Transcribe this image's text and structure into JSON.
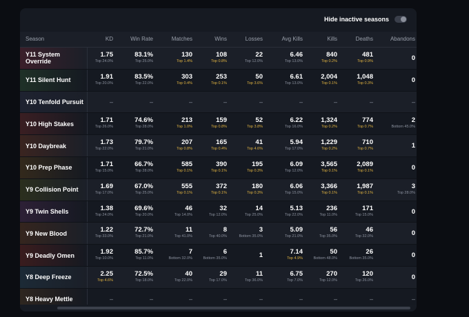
{
  "toggle": {
    "label": "Hide inactive seasons",
    "on": false
  },
  "columns": [
    "Season",
    "KD",
    "Win Rate",
    "Matches",
    "Wins",
    "Losses",
    "Avg Kills",
    "Kills",
    "Deaths",
    "Abandons"
  ],
  "rows": [
    {
      "season": "Y11 System Override",
      "tint": "#3b1f2a",
      "cells": [
        {
          "v": "1.75",
          "r": "Top 24.0%",
          "gold": false
        },
        {
          "v": "83.1%",
          "r": "Top 25.0%",
          "gold": false
        },
        {
          "v": "130",
          "r": "Top 1.4%",
          "gold": true
        },
        {
          "v": "108",
          "r": "Top 0.8%",
          "gold": true
        },
        {
          "v": "22",
          "r": "Top 12.0%",
          "gold": false
        },
        {
          "v": "6.46",
          "r": "Top 13.0%",
          "gold": false
        },
        {
          "v": "840",
          "r": "Top 0.2%",
          "gold": true
        },
        {
          "v": "481",
          "r": "Top 0.9%",
          "gold": true
        },
        {
          "v": "0",
          "r": "",
          "gold": false
        }
      ]
    },
    {
      "season": "Y11 Silent Hunt",
      "tint": "#1f3127",
      "cells": [
        {
          "v": "1.91",
          "r": "Top 20.0%",
          "gold": false
        },
        {
          "v": "83.5%",
          "r": "Top 22.0%",
          "gold": false
        },
        {
          "v": "303",
          "r": "Top 0.4%",
          "gold": true
        },
        {
          "v": "253",
          "r": "Top 0.1%",
          "gold": true
        },
        {
          "v": "50",
          "r": "Top 3.6%",
          "gold": true
        },
        {
          "v": "6.61",
          "r": "Top 13.0%",
          "gold": false
        },
        {
          "v": "2,004",
          "r": "Top 0.1%",
          "gold": true
        },
        {
          "v": "1,048",
          "r": "Top 0.3%",
          "gold": true
        },
        {
          "v": "0",
          "r": "",
          "gold": false
        }
      ]
    },
    {
      "season": "Y10 Tenfold Pursuit",
      "tint": "#1e2230",
      "cells": null
    },
    {
      "season": "Y10 High Stakes",
      "tint": "#3a1e22",
      "cells": [
        {
          "v": "1.71",
          "r": "Top 26.0%",
          "gold": false
        },
        {
          "v": "74.6%",
          "r": "Top 28.0%",
          "gold": false
        },
        {
          "v": "213",
          "r": "Top 1.0%",
          "gold": true
        },
        {
          "v": "159",
          "r": "Top 0.8%",
          "gold": true
        },
        {
          "v": "52",
          "r": "Top 3.8%",
          "gold": true
        },
        {
          "v": "6.22",
          "r": "Top 16.0%",
          "gold": false
        },
        {
          "v": "1,324",
          "r": "Top 0.2%",
          "gold": true
        },
        {
          "v": "774",
          "r": "Top 0.7%",
          "gold": true
        },
        {
          "v": "2",
          "r": "Bottom 45.0%",
          "gold": false
        }
      ]
    },
    {
      "season": "Y10 Daybreak",
      "tint": "#3a2420",
      "cells": [
        {
          "v": "1.73",
          "r": "Top 22.0%",
          "gold": false
        },
        {
          "v": "79.7%",
          "r": "Top 21.0%",
          "gold": false
        },
        {
          "v": "207",
          "r": "Top 0.8%",
          "gold": true
        },
        {
          "v": "165",
          "r": "Top 0.4%",
          "gold": true
        },
        {
          "v": "41",
          "r": "Top 4.6%",
          "gold": true
        },
        {
          "v": "5.94",
          "r": "Top 17.0%",
          "gold": false
        },
        {
          "v": "1,229",
          "r": "Top 0.2%",
          "gold": true
        },
        {
          "v": "710",
          "r": "Top 0.7%",
          "gold": true
        },
        {
          "v": "1",
          "r": "",
          "gold": false
        }
      ]
    },
    {
      "season": "Y10 Prep Phase",
      "tint": "#33291c",
      "cells": [
        {
          "v": "1.71",
          "r": "Top 15.0%",
          "gold": false
        },
        {
          "v": "66.7%",
          "r": "Top 28.0%",
          "gold": false
        },
        {
          "v": "585",
          "r": "Top 0.1%",
          "gold": true
        },
        {
          "v": "390",
          "r": "Top 0.1%",
          "gold": true
        },
        {
          "v": "195",
          "r": "Top 0.3%",
          "gold": true
        },
        {
          "v": "6.09",
          "r": "Top 12.0%",
          "gold": false
        },
        {
          "v": "3,565",
          "r": "Top 0.1%",
          "gold": true
        },
        {
          "v": "2,089",
          "r": "Top 0.1%",
          "gold": true
        },
        {
          "v": "0",
          "r": "",
          "gold": false
        }
      ]
    },
    {
      "season": "Y9 Collision Point",
      "tint": "#2b2f1e",
      "cells": [
        {
          "v": "1.69",
          "r": "Top 17.0%",
          "gold": false
        },
        {
          "v": "67.0%",
          "r": "Top 25.0%",
          "gold": false
        },
        {
          "v": "555",
          "r": "Top 0.1%",
          "gold": true
        },
        {
          "v": "372",
          "r": "Top 0.1%",
          "gold": true
        },
        {
          "v": "180",
          "r": "Top 0.3%",
          "gold": true
        },
        {
          "v": "6.06",
          "r": "Top 15.0%",
          "gold": false
        },
        {
          "v": "3,366",
          "r": "Top 0.1%",
          "gold": true
        },
        {
          "v": "1,987",
          "r": "Top 0.1%",
          "gold": true
        },
        {
          "v": "3",
          "r": "Top 28.0%",
          "gold": false
        }
      ]
    },
    {
      "season": "Y9 Twin Shells",
      "tint": "#2d2036",
      "cells": [
        {
          "v": "1.38",
          "r": "Top 24.0%",
          "gold": false
        },
        {
          "v": "69.6%",
          "r": "Top 20.0%",
          "gold": false
        },
        {
          "v": "46",
          "r": "Top 14.0%",
          "gold": false
        },
        {
          "v": "32",
          "r": "Top 12.0%",
          "gold": false
        },
        {
          "v": "14",
          "r": "Top 25.0%",
          "gold": false
        },
        {
          "v": "5.13",
          "r": "Top 22.0%",
          "gold": false
        },
        {
          "v": "236",
          "r": "Top 11.0%",
          "gold": false
        },
        {
          "v": "171",
          "r": "Top 15.0%",
          "gold": false
        },
        {
          "v": "0",
          "r": "",
          "gold": false
        }
      ]
    },
    {
      "season": "Y9 New Blood",
      "tint": "#35251e",
      "cells": [
        {
          "v": "1.22",
          "r": "Top 33.0%",
          "gold": false
        },
        {
          "v": "72.7%",
          "r": "Top 21.0%",
          "gold": false
        },
        {
          "v": "11",
          "r": "Top 41.0%",
          "gold": false
        },
        {
          "v": "8",
          "r": "Top 40.0%",
          "gold": false
        },
        {
          "v": "3",
          "r": "Bottom 35.0%",
          "gold": false
        },
        {
          "v": "5.09",
          "r": "Top 21.0%",
          "gold": false
        },
        {
          "v": "56",
          "r": "Top 35.0%",
          "gold": false
        },
        {
          "v": "46",
          "r": "Top 32.0%",
          "gold": false
        },
        {
          "v": "0",
          "r": "",
          "gold": false
        }
      ]
    },
    {
      "season": "Y9 Deadly Omen",
      "tint": "#3a1c1e",
      "cells": [
        {
          "v": "1.92",
          "r": "Top 10.0%",
          "gold": false
        },
        {
          "v": "85.7%",
          "r": "Top 11.0%",
          "gold": false
        },
        {
          "v": "7",
          "r": "Bottom 32.0%",
          "gold": false
        },
        {
          "v": "6",
          "r": "Bottom 35.0%",
          "gold": false
        },
        {
          "v": "1",
          "r": "",
          "gold": false
        },
        {
          "v": "7.14",
          "r": "Top 4.9%",
          "gold": true
        },
        {
          "v": "50",
          "r": "Bottom 48.0%",
          "gold": false
        },
        {
          "v": "26",
          "r": "Bottom 35.0%",
          "gold": false
        },
        {
          "v": "0",
          "r": "",
          "gold": false
        }
      ]
    },
    {
      "season": "Y8 Deep Freeze",
      "tint": "#1c2a36",
      "cells": [
        {
          "v": "2.25",
          "r": "Top 4.6%",
          "gold": true
        },
        {
          "v": "72.5%",
          "r": "Top 18.0%",
          "gold": false
        },
        {
          "v": "40",
          "r": "Top 22.0%",
          "gold": false
        },
        {
          "v": "29",
          "r": "Top 17.0%",
          "gold": false
        },
        {
          "v": "11",
          "r": "Top 36.0%",
          "gold": false
        },
        {
          "v": "6.75",
          "r": "Top 7.0%",
          "gold": false
        },
        {
          "v": "270",
          "r": "Top 12.0%",
          "gold": false
        },
        {
          "v": "120",
          "r": "Top 26.0%",
          "gold": false
        },
        {
          "v": "0",
          "r": "",
          "gold": false
        }
      ]
    },
    {
      "season": "Y8 Heavy Mettle",
      "tint": "#2e2620",
      "cells": null
    }
  ],
  "empty_dash": "–"
}
